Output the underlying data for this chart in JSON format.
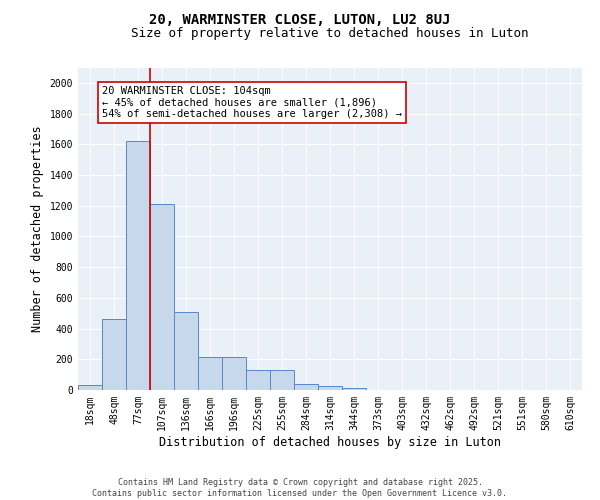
{
  "title1": "20, WARMINSTER CLOSE, LUTON, LU2 8UJ",
  "title2": "Size of property relative to detached houses in Luton",
  "xlabel": "Distribution of detached houses by size in Luton",
  "ylabel": "Number of detached properties",
  "bin_labels": [
    "18sqm",
    "48sqm",
    "77sqm",
    "107sqm",
    "136sqm",
    "166sqm",
    "196sqm",
    "225sqm",
    "255sqm",
    "284sqm",
    "314sqm",
    "344sqm",
    "373sqm",
    "403sqm",
    "432sqm",
    "462sqm",
    "492sqm",
    "521sqm",
    "551sqm",
    "580sqm",
    "610sqm"
  ],
  "bar_heights": [
    30,
    460,
    1620,
    1210,
    510,
    215,
    215,
    130,
    130,
    40,
    25,
    15,
    0,
    0,
    0,
    0,
    0,
    0,
    0,
    0,
    0
  ],
  "bar_color": "#c8d8eb",
  "bar_edge_color": "#5588cc",
  "vline_x_index": 2.5,
  "vline_color": "#cc0000",
  "annotation_text": "20 WARMINSTER CLOSE: 104sqm\n← 45% of detached houses are smaller (1,896)\n54% of semi-detached houses are larger (2,308) →",
  "box_color": "#ffffff",
  "box_edge_color": "#cc0000",
  "ylim": [
    0,
    2100
  ],
  "yticks": [
    0,
    200,
    400,
    600,
    800,
    1000,
    1200,
    1400,
    1600,
    1800,
    2000
  ],
  "bg_color": "#eaf0f8",
  "grid_color": "#ffffff",
  "footnote": "Contains HM Land Registry data © Crown copyright and database right 2025.\nContains public sector information licensed under the Open Government Licence v3.0.",
  "title_fontsize": 10,
  "subtitle_fontsize": 9,
  "label_fontsize": 8.5,
  "tick_fontsize": 7,
  "annotation_fontsize": 7.5,
  "footnote_fontsize": 6
}
